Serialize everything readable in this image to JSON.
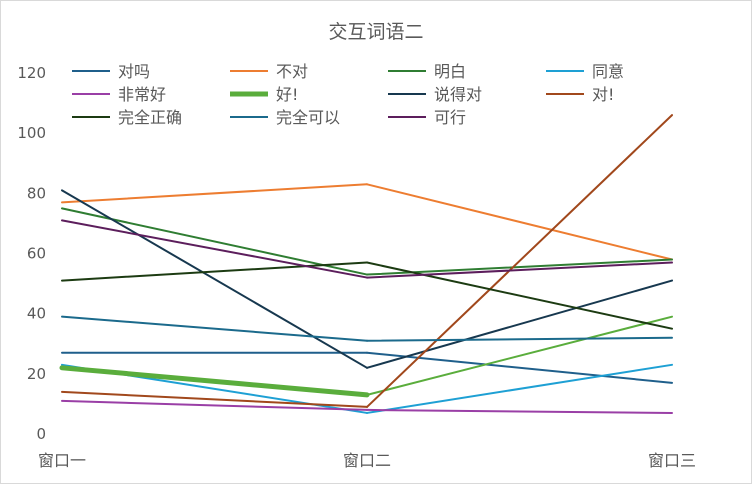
{
  "chart_data": {
    "type": "line",
    "title": "交互词语二",
    "categories": [
      "窗口一",
      "窗口二",
      "窗口三"
    ],
    "ylim": [
      0,
      120
    ],
    "yticks": [
      0,
      20,
      40,
      60,
      80,
      100,
      120
    ],
    "grid": false,
    "legend_position": "top",
    "series": [
      {
        "name": "对吗",
        "color": "#1f5f8b",
        "values": [
          27,
          27,
          17
        ]
      },
      {
        "name": "不对",
        "color": "#ed7d31",
        "values": [
          77,
          83,
          58
        ]
      },
      {
        "name": "明白",
        "color": "#2f7d32",
        "values": [
          75,
          53,
          58
        ]
      },
      {
        "name": "同意",
        "color": "#1ea0d4",
        "values": [
          23,
          7,
          23
        ]
      },
      {
        "name": "非常好",
        "color": "#9a3fa6",
        "values": [
          11,
          8,
          7
        ]
      },
      {
        "name": "好!",
        "color": "#5aad3c",
        "values": [
          22,
          13,
          39
        ],
        "widths": [
          5,
          2
        ]
      },
      {
        "name": "说得对",
        "color": "#17384f",
        "values": [
          81,
          22,
          51
        ]
      },
      {
        "name": "对!",
        "color": "#a1481c",
        "values": [
          14,
          9,
          106
        ]
      },
      {
        "name": "完全正确",
        "color": "#1c3b12",
        "values": [
          51,
          57,
          35
        ]
      },
      {
        "name": "完全可以",
        "color": "#1b6a8c",
        "values": [
          39,
          31,
          32
        ]
      },
      {
        "name": "可行",
        "color": "#5c1e5c",
        "values": [
          71,
          52,
          57
        ]
      }
    ]
  }
}
